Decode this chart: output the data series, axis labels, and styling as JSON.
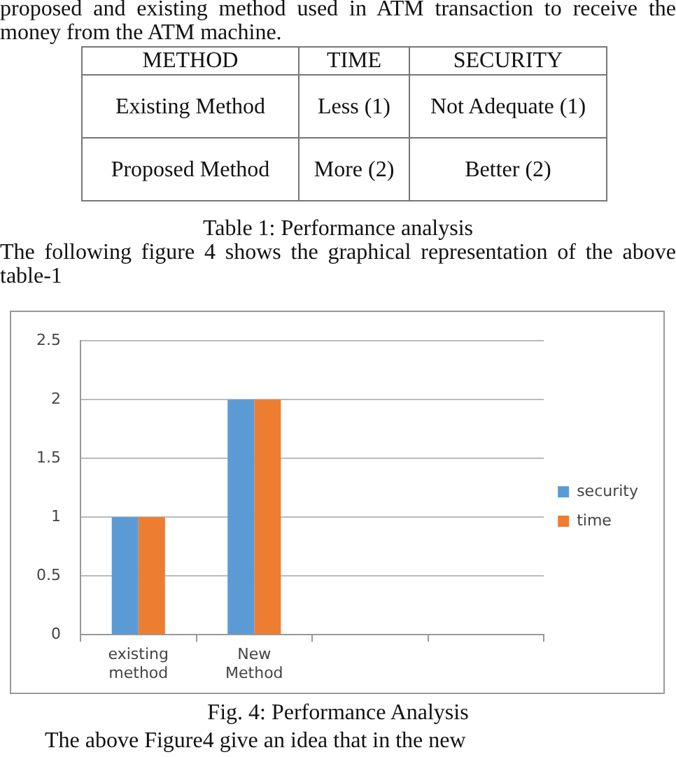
{
  "chart_data": {
    "type": "bar",
    "title": "Fig. 4: Performance Analysis",
    "categories": [
      "existing method",
      "New Method",
      null,
      null
    ],
    "series": [
      {
        "name": "security",
        "color": "#5b9bd5",
        "values": [
          1,
          2,
          null,
          null
        ]
      },
      {
        "name": "time",
        "color": "#ed7d31",
        "values": [
          1,
          2,
          null,
          null
        ]
      }
    ],
    "ylim": [
      0,
      2.5
    ],
    "yticks": [
      0,
      0.5,
      1,
      1.5,
      2,
      2.5
    ],
    "grid": "y",
    "legend": "right",
    "annotations": [
      "proposed and existing method used in ATM transaction to receive the money from the ATM machine.",
      "METHOD",
      "TIME",
      "SECURITY",
      "Existing Method",
      "Less (1)",
      "Not Adequate (1)",
      "Proposed Method",
      "More (2)",
      "Better (2)",
      "Table 1: Performance analysis",
      "The following figure 4 shows the graphical representation of the above table-1",
      "The above Figure4 give an idea that in the new"
    ]
  }
}
